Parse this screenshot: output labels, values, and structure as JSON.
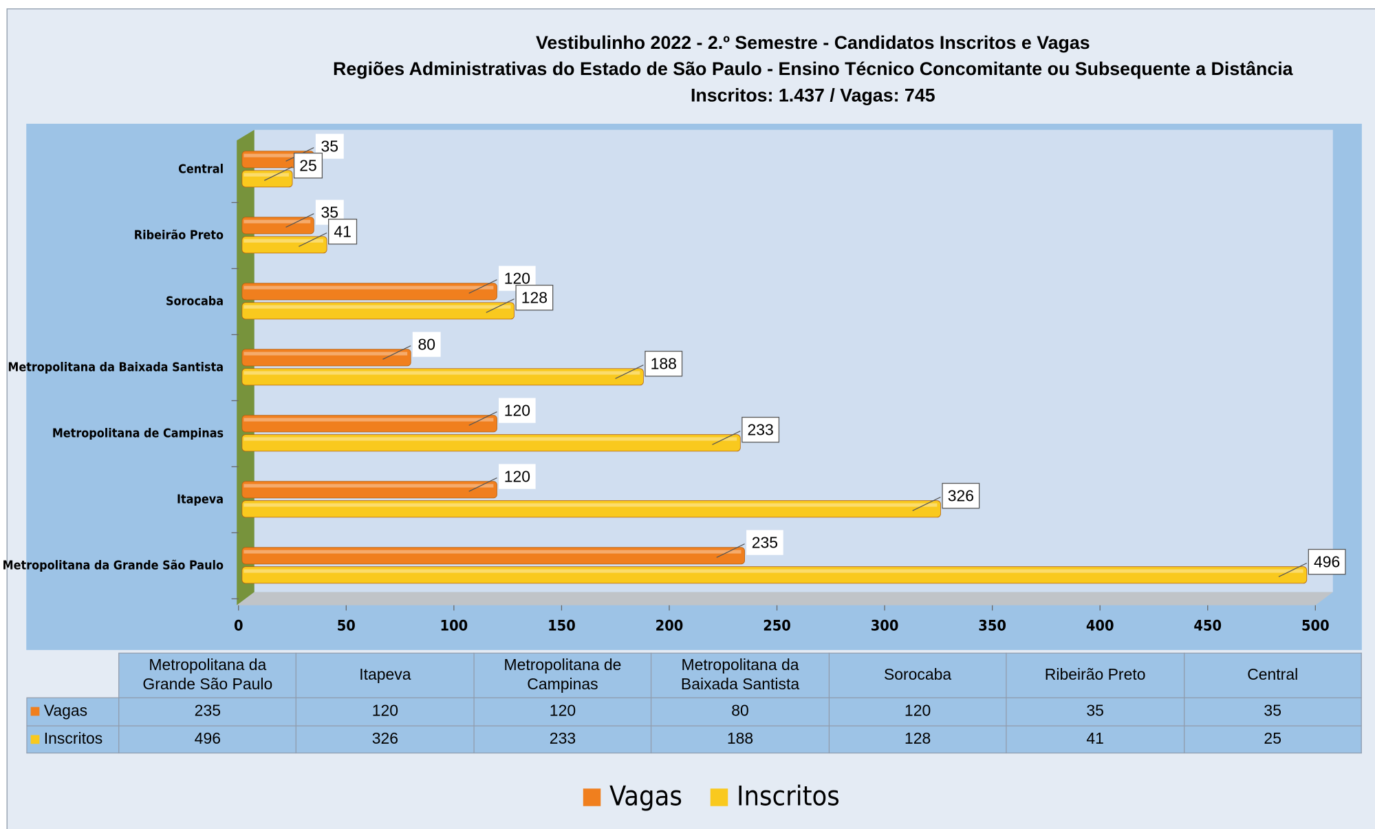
{
  "chart_data": {
    "type": "hbar",
    "title": "Vestibulinho 2022 - 2.º Semestre - Candidatos Inscritos e Vagas",
    "subtitle": "Regiões Administrativas do Estado de São Paulo - Ensino Técnico Concomitante ou Subsequente a Distância",
    "subtitle2": "Inscritos: 1.437 / Vagas: 745",
    "categories": [
      "Metropolitana da Grande São Paulo",
      "Itapeva",
      "Metropolitana de Campinas",
      "Metropolitana da Baixada Santista",
      "Sorocaba",
      "Ribeirão Preto",
      "Central"
    ],
    "series": [
      {
        "name": "Vagas",
        "color": "#f07f1e",
        "values": [
          235,
          120,
          120,
          80,
          120,
          35,
          35
        ]
      },
      {
        "name": "Inscritos",
        "color": "#f9c91e",
        "values": [
          496,
          326,
          233,
          188,
          128,
          41,
          25
        ]
      }
    ],
    "xlim": [
      0,
      500
    ],
    "xticks": [
      0,
      50,
      100,
      150,
      200,
      250,
      300,
      350,
      400,
      450,
      500
    ],
    "legend": "bottom"
  }
}
